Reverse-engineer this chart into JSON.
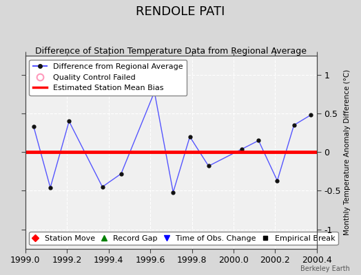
{
  "title": "RENDOLE PATI",
  "subtitle": "Difference of Station Temperature Data from Regional Average",
  "ylabel_right": "Monthly Temperature Anomaly Difference (°C)",
  "watermark": "Berkeley Earth",
  "xlim": [
    1999.0,
    2000.4
  ],
  "ylim": [
    -1.25,
    1.25
  ],
  "yticks": [
    -1,
    -0.5,
    0,
    0.5,
    1
  ],
  "xticks": [
    1999.0,
    1999.2,
    1999.4,
    1999.6,
    1999.8,
    2000.0,
    2000.2,
    2000.4
  ],
  "x_data": [
    1999.04,
    1999.12,
    1999.21,
    1999.37,
    1999.46,
    1999.62,
    1999.71,
    1999.79,
    1999.88,
    2000.04,
    2000.12,
    2000.21,
    2000.29,
    2000.37
  ],
  "y_data": [
    0.33,
    -0.46,
    0.4,
    -0.45,
    -0.28,
    0.78,
    -0.52,
    0.2,
    -0.18,
    0.04,
    0.15,
    -0.37,
    0.35,
    0.48
  ],
  "bias_y": 0.0,
  "line_color": "#5555ff",
  "bias_color": "#ff0000",
  "bg_color": "#d8d8d8",
  "plot_bg_color": "#f0f0f0",
  "grid_color": "#ffffff",
  "title_fontsize": 13,
  "subtitle_fontsize": 9,
  "tick_fontsize": 9,
  "legend_fontsize": 8
}
